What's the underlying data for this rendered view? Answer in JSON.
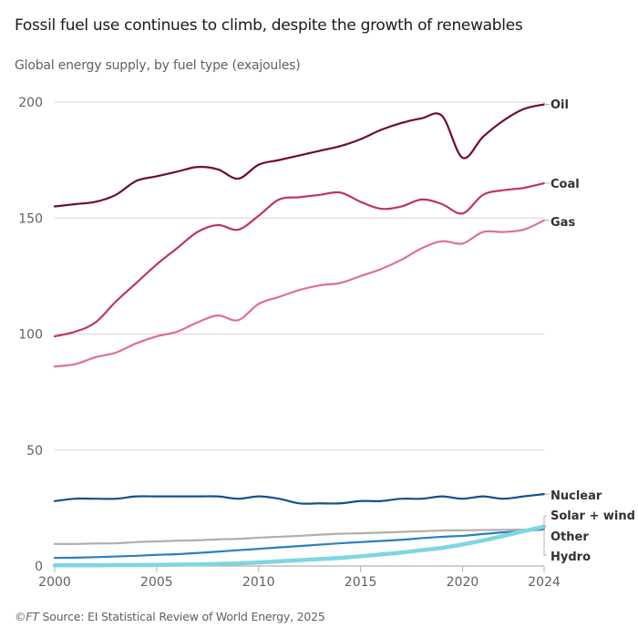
{
  "header": {
    "title": "Fossil fuel use continues to climb, despite the growth of renewables",
    "subtitle": "Global energy supply, by fuel type (exajoules)"
  },
  "footer": {
    "copyright": "©FT",
    "source": "Source: EI Statistical Review of World Energy, 2025"
  },
  "chart_data": {
    "type": "line",
    "title": "Fossil fuel use continues to climb, despite the growth of renewables",
    "subtitle": "Global energy supply, by fuel type (exajoules)",
    "xlabel": "",
    "ylabel": "Exajoules",
    "xlim": [
      2000,
      2024
    ],
    "ylim": [
      0,
      200
    ],
    "x_ticks": [
      2000,
      2005,
      2010,
      2015,
      2020,
      2024
    ],
    "y_ticks": [
      0,
      50,
      100,
      150,
      200
    ],
    "grid": true,
    "legend": "direct labels at right end of lines",
    "x": [
      2000,
      2001,
      2002,
      2003,
      2004,
      2005,
      2006,
      2007,
      2008,
      2009,
      2010,
      2011,
      2012,
      2013,
      2014,
      2015,
      2016,
      2017,
      2018,
      2019,
      2020,
      2021,
      2022,
      2023,
      2024
    ],
    "series": [
      {
        "name": "Oil",
        "color": "#6e0d2a",
        "values": [
          155,
          156,
          157,
          160,
          166,
          168,
          170,
          172,
          171,
          167,
          173,
          175,
          177,
          179,
          181,
          184,
          188,
          191,
          193,
          194,
          176,
          185,
          192,
          197,
          199
        ]
      },
      {
        "name": "Coal",
        "color": "#c0355f",
        "values": [
          99,
          101,
          105,
          114,
          122,
          130,
          137,
          144,
          147,
          145,
          151,
          158,
          159,
          160,
          161,
          157,
          154,
          155,
          158,
          156,
          152,
          160,
          162,
          163,
          165
        ]
      },
      {
        "name": "Gas",
        "color": "#e0708e",
        "values": [
          86,
          87,
          90,
          92,
          96,
          99,
          101,
          105,
          108,
          106,
          113,
          116,
          119,
          121,
          122,
          125,
          128,
          132,
          137,
          140,
          139,
          144,
          144,
          145,
          149
        ]
      },
      {
        "name": "Nuclear",
        "color": "#13508f",
        "values": [
          28,
          29,
          29,
          29,
          30,
          30,
          30,
          30,
          30,
          29,
          30,
          29,
          27,
          27,
          27,
          28,
          28,
          29,
          29,
          30,
          29,
          30,
          29,
          30,
          31
        ]
      },
      {
        "name": "Other",
        "color": "#b4aeaa",
        "values": [
          9.5,
          9.5,
          9.7,
          9.8,
          10.3,
          10.6,
          10.9,
          11.1,
          11.5,
          11.7,
          12.2,
          12.6,
          13,
          13.5,
          13.9,
          14.1,
          14.4,
          14.7,
          15,
          15.3,
          15.4,
          15.5,
          15.6,
          15.7,
          15.8
        ]
      },
      {
        "name": "Hydro",
        "color": "#2a7fc2",
        "values": [
          3.5,
          3.6,
          3.8,
          4.1,
          4.4,
          4.8,
          5.1,
          5.6,
          6.2,
          6.8,
          7.4,
          8,
          8.6,
          9.2,
          9.8,
          10.3,
          10.8,
          11.3,
          12,
          12.6,
          13,
          13.8,
          14.5,
          15,
          15.8
        ]
      },
      {
        "name": "Solar + wind",
        "color": "#7fd6e1",
        "values": [
          0.3,
          0.3,
          0.3,
          0.4,
          0.4,
          0.5,
          0.6,
          0.7,
          0.9,
          1.1,
          1.5,
          2,
          2.5,
          3,
          3.5,
          4.2,
          5,
          5.8,
          6.8,
          7.8,
          9.3,
          11,
          13,
          15,
          17
        ]
      }
    ]
  }
}
